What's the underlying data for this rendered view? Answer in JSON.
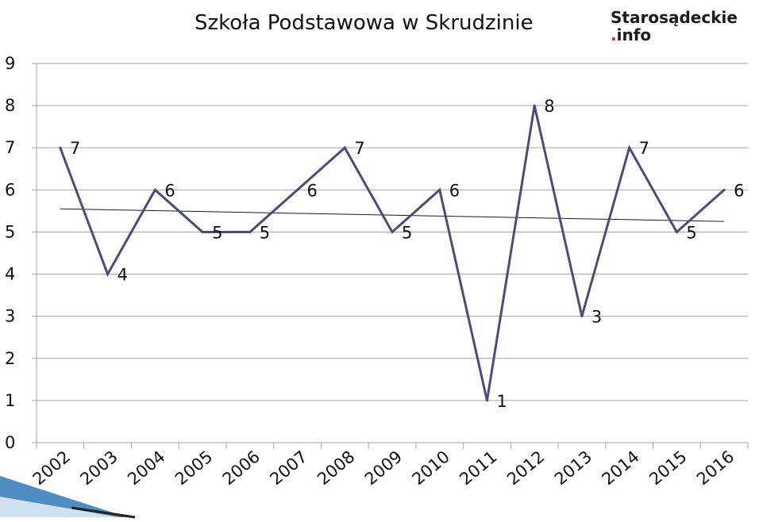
{
  "page": {
    "logo_main": "Starosądeckie",
    "logo_dot": ".",
    "logo_suffix": "info"
  },
  "colors": {
    "line": "#4b4c7b",
    "trend": "#1a1a1a",
    "grid": "#a6a6a6",
    "accent_banner": "#2f78b7",
    "logo_dot": "#e0271d"
  },
  "chart_data": {
    "type": "line",
    "title": "Szkoła Podstawowa w Skrudzinie",
    "xlabel": "",
    "ylabel": "",
    "categories": [
      "2002",
      "2003",
      "2004",
      "2005",
      "2006",
      "2007",
      "2008",
      "2009",
      "2010",
      "2011",
      "2012",
      "2013",
      "2014",
      "2015",
      "2016"
    ],
    "x": [
      2002,
      2003,
      2004,
      2005,
      2006,
      2007,
      2008,
      2009,
      2010,
      2011,
      2012,
      2013,
      2014,
      2015,
      2016
    ],
    "values": [
      7,
      4,
      6,
      5,
      5,
      6,
      7,
      5,
      6,
      1,
      8,
      3,
      7,
      5,
      6
    ],
    "data_labels": [
      "7",
      "4",
      "6",
      "5",
      "5",
      "6",
      "7",
      "5",
      "6",
      "1",
      "8",
      "3",
      "7",
      "5",
      "6"
    ],
    "y_ticks": [
      "0",
      "1",
      "2",
      "3",
      "4",
      "5",
      "6",
      "7",
      "8",
      "9"
    ],
    "ylim": [
      0,
      9
    ],
    "trendline": {
      "type": "linear",
      "start": 5.55,
      "end": 5.25
    },
    "grid": true,
    "legend": "none"
  }
}
